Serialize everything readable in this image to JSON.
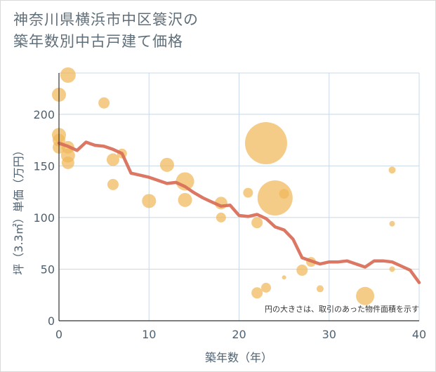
{
  "title_lines": [
    "神奈川県横浜市中区簑沢の",
    "築年数別中古戸建て価格"
  ],
  "chart_data": {
    "type": "scatter",
    "xlabel": "築年数（年）",
    "ylabel": "坪（3.3㎡）単価（万円）",
    "xlim": [
      0,
      40
    ],
    "ylim": [
      0,
      240
    ],
    "x_ticks": [
      "0",
      "10",
      "20",
      "30",
      "40"
    ],
    "y_ticks": [
      "0",
      "50",
      "100",
      "150",
      "200"
    ],
    "x_tick_values": [
      0,
      10,
      20,
      30,
      40
    ],
    "y_tick_values": [
      0,
      50,
      100,
      150,
      200
    ],
    "grid": true,
    "note": "円の大きさは、取引のあった物件面積を示す",
    "colors": {
      "bubble": "#f0b85a",
      "bubble_dark": "#e9a33a",
      "line": "#d9705a",
      "grid": "#c8d8e8",
      "axis": "#333333",
      "text": "#4f6170"
    },
    "bubbles": [
      {
        "x": 0,
        "y": 219,
        "size": 10
      },
      {
        "x": 0,
        "y": 180,
        "size": 10
      },
      {
        "x": 0,
        "y": 175,
        "size": 9
      },
      {
        "x": 0,
        "y": 168,
        "size": 9
      },
      {
        "x": 1,
        "y": 238,
        "size": 11
      },
      {
        "x": 1,
        "y": 168,
        "size": 9
      },
      {
        "x": 1,
        "y": 160,
        "size": 10
      },
      {
        "x": 1,
        "y": 153,
        "size": 9
      },
      {
        "x": 5,
        "y": 211,
        "size": 8
      },
      {
        "x": 6,
        "y": 156,
        "size": 9
      },
      {
        "x": 6,
        "y": 132,
        "size": 8
      },
      {
        "x": 7,
        "y": 162,
        "size": 7
      },
      {
        "x": 10,
        "y": 116,
        "size": 10
      },
      {
        "x": 12,
        "y": 151,
        "size": 10
      },
      {
        "x": 14,
        "y": 135,
        "size": 13
      },
      {
        "x": 14,
        "y": 117,
        "size": 10
      },
      {
        "x": 18,
        "y": 114,
        "size": 9
      },
      {
        "x": 18,
        "y": 100,
        "size": 7
      },
      {
        "x": 21,
        "y": 124,
        "size": 7
      },
      {
        "x": 22,
        "y": 95,
        "size": 8
      },
      {
        "x": 22,
        "y": 27,
        "size": 8
      },
      {
        "x": 23,
        "y": 172,
        "size": 30
      },
      {
        "x": 23,
        "y": 32,
        "size": 7
      },
      {
        "x": 24,
        "y": 119,
        "size": 25
      },
      {
        "x": 25,
        "y": 123,
        "size": 7
      },
      {
        "x": 25,
        "y": 42,
        "size": 3
      },
      {
        "x": 27,
        "y": 49,
        "size": 8
      },
      {
        "x": 28,
        "y": 57,
        "size": 7
      },
      {
        "x": 29,
        "y": 31,
        "size": 5
      },
      {
        "x": 34,
        "y": 24,
        "size": 13
      },
      {
        "x": 37,
        "y": 146,
        "size": 5
      },
      {
        "x": 37,
        "y": 94,
        "size": 4
      },
      {
        "x": 37,
        "y": 50,
        "size": 4
      }
    ],
    "series": [
      {
        "x": [
          0,
          1,
          2,
          3,
          4,
          5,
          6,
          7,
          8,
          9,
          10,
          11,
          12,
          13,
          14,
          15,
          16,
          17,
          18,
          19,
          20,
          21,
          22,
          23,
          24,
          25,
          26,
          27,
          28,
          29,
          30,
          31,
          32,
          33,
          34,
          35,
          36,
          37,
          38,
          39,
          40
        ],
        "values": [
          172,
          169,
          165,
          173,
          170,
          169,
          166,
          162,
          143,
          141,
          139,
          136,
          133,
          134,
          130,
          124,
          119,
          115,
          111,
          112,
          102,
          101,
          103,
          99,
          91,
          88,
          79,
          61,
          58,
          55,
          57,
          57,
          58,
          55,
          52,
          58,
          58,
          57,
          53,
          49,
          37
        ]
      }
    ]
  }
}
